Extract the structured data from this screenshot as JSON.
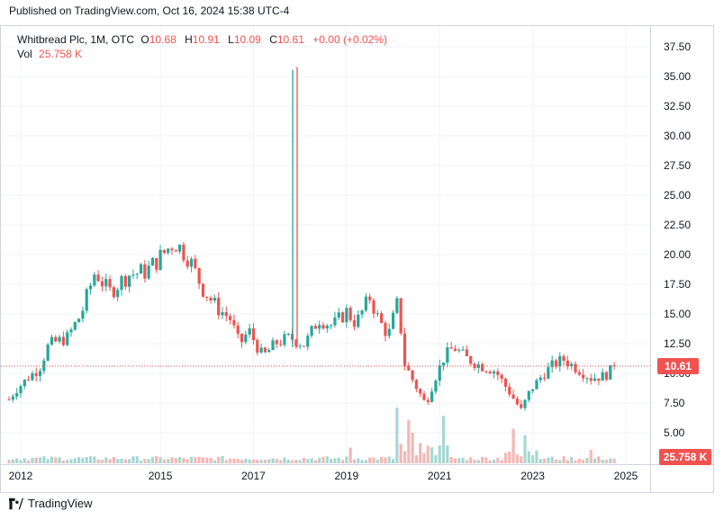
{
  "header": {
    "published": "Published on TradingView.com, Oct 16, 2024 15:38 UTC-4"
  },
  "legend": {
    "symbol": "Whitbread Plc, 1M, OTC",
    "open_label": "O",
    "open": "10.68",
    "high_label": "H",
    "high": "10.91",
    "low_label": "L",
    "low": "10.09",
    "close_label": "C",
    "close": "10.61",
    "change": "+0.00 (+0.02%)",
    "vol_label": "Vol",
    "vol": "25.758 K"
  },
  "footer": {
    "brand": "TradingView"
  },
  "colors": {
    "up": "#26a69a",
    "down": "#ef5350",
    "up_vol": "#a6d8d2",
    "down_vol": "#f5b7b6",
    "grid": "#f0f3fa",
    "axis_text": "#131722"
  },
  "chart_data": {
    "type": "candlestick",
    "title": "Whitbread Plc, 1M, OTC",
    "ylim": [
      3.2,
      38.6
    ],
    "y_ticks": [
      "5.00",
      "7.50",
      "10.00",
      "12.50",
      "15.00",
      "17.50",
      "20.00",
      "22.50",
      "25.00",
      "27.50",
      "30.00",
      "32.50",
      "35.00",
      "37.50"
    ],
    "x_ticks": [
      {
        "label": "2012",
        "t": 2012.0
      },
      {
        "label": "2015",
        "t": 2015.0
      },
      {
        "label": "2017",
        "t": 2017.0
      },
      {
        "label": "2019",
        "t": 2019.0
      },
      {
        "label": "2021",
        "t": 2021.0
      },
      {
        "label": "2023",
        "t": 2023.0
      },
      {
        "label": "2025",
        "t": 2025.0
      }
    ],
    "last_price": "10.61",
    "last_volume": "25.758 K",
    "waypoints": [
      [
        2011.75,
        7.8
      ],
      [
        2011.9,
        8.6
      ],
      [
        2012.2,
        9.8
      ],
      [
        2012.4,
        10.4
      ],
      [
        2012.6,
        12.4
      ],
      [
        2013.0,
        13.0
      ],
      [
        2013.3,
        15.0
      ],
      [
        2013.6,
        18.6
      ],
      [
        2013.9,
        16.8
      ],
      [
        2014.3,
        18.3
      ],
      [
        2014.7,
        18.6
      ],
      [
        2015.0,
        19.8
      ],
      [
        2015.3,
        21.1
      ],
      [
        2015.6,
        19.8
      ],
      [
        2015.9,
        17.2
      ],
      [
        2016.2,
        15.6
      ],
      [
        2016.5,
        14.6
      ],
      [
        2016.7,
        12.4
      ],
      [
        2016.9,
        13.6
      ],
      [
        2017.2,
        11.4
      ],
      [
        2017.5,
        12.6
      ],
      [
        2017.8,
        13.0
      ],
      [
        2018.1,
        12.4
      ],
      [
        2018.4,
        14.6
      ],
      [
        2018.7,
        14.0
      ],
      [
        2019.0,
        15.2
      ],
      [
        2019.2,
        14.2
      ],
      [
        2019.5,
        16.4
      ],
      [
        2019.7,
        14.4
      ],
      [
        2019.9,
        13.2
      ],
      [
        2020.1,
        16.0
      ],
      [
        2020.25,
        10.8
      ],
      [
        2020.45,
        9.2
      ],
      [
        2020.7,
        7.4
      ],
      [
        2020.9,
        9.6
      ],
      [
        2021.1,
        11.4
      ],
      [
        2021.3,
        12.2
      ],
      [
        2021.6,
        11.2
      ],
      [
        2021.9,
        10.6
      ],
      [
        2022.2,
        10.2
      ],
      [
        2022.5,
        8.4
      ],
      [
        2022.75,
        6.9
      ],
      [
        2022.95,
        8.6
      ],
      [
        2023.2,
        9.8
      ],
      [
        2023.4,
        10.6
      ],
      [
        2023.65,
        11.2
      ],
      [
        2023.95,
        10.4
      ],
      [
        2024.25,
        9.6
      ],
      [
        2024.55,
        9.8
      ],
      [
        2024.78,
        10.61
      ]
    ],
    "spike": {
      "t": 2017.9,
      "low": 12.2,
      "high": 35.8
    },
    "volume_spikes": [
      {
        "t": 2020.1,
        "v": 1.0
      },
      {
        "t": 2020.3,
        "v": 0.78
      },
      {
        "t": 2020.45,
        "v": 0.55
      },
      {
        "t": 2020.75,
        "v": 0.3
      },
      {
        "t": 2021.05,
        "v": 0.85
      },
      {
        "t": 2022.6,
        "v": 0.62
      },
      {
        "t": 2022.8,
        "v": 0.5
      },
      {
        "t": 2019.1,
        "v": 0.28
      },
      {
        "t": 2023.1,
        "v": 0.23
      },
      {
        "t": 2024.25,
        "v": 0.24
      }
    ]
  }
}
